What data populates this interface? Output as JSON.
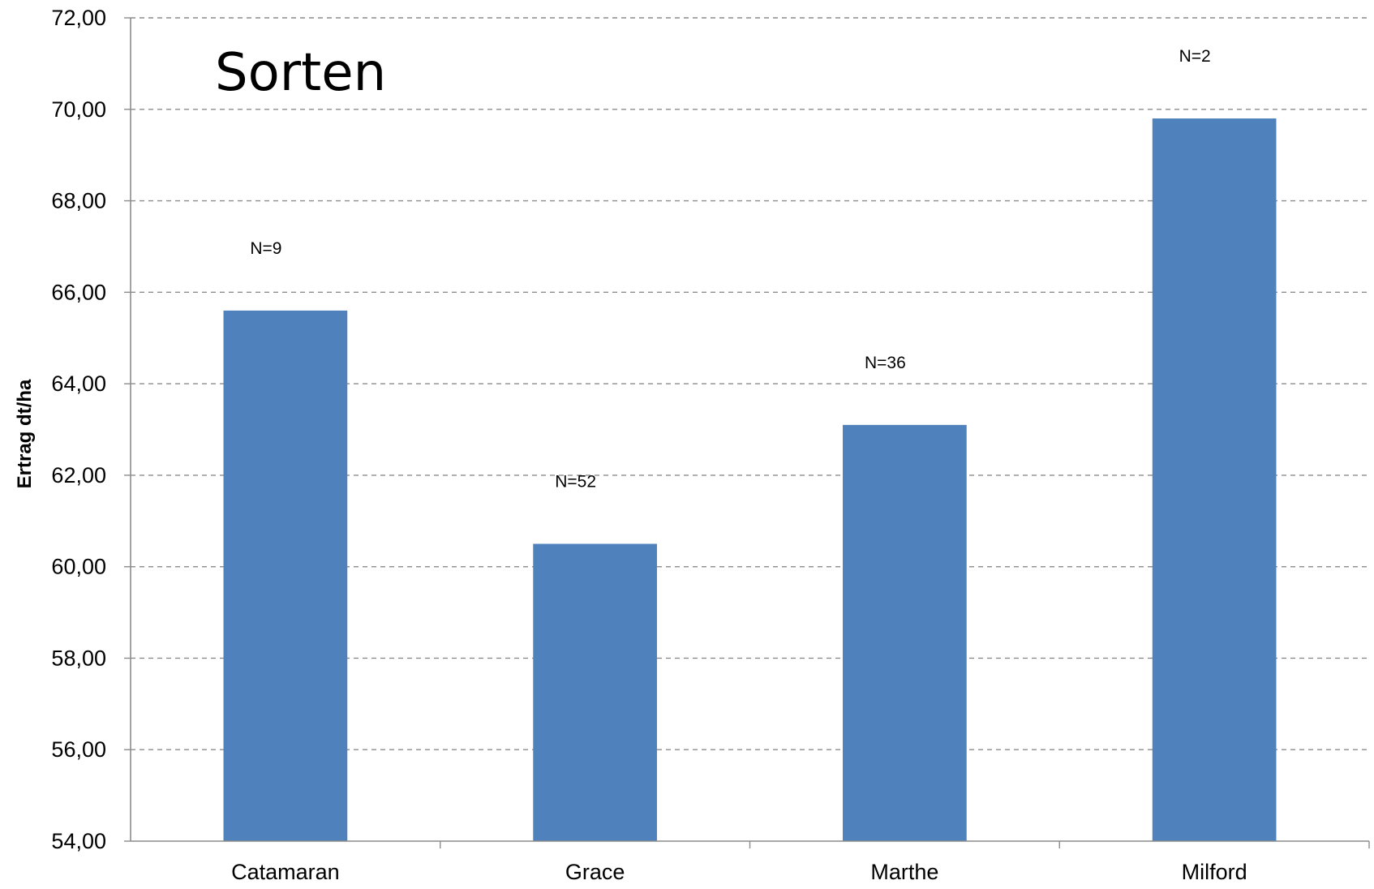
{
  "chart_data": {
    "type": "bar",
    "title": "Sorten",
    "xlabel": "",
    "ylabel": "Ertrag dt/ha",
    "ylim": [
      54,
      72
    ],
    "ytick_step": 2,
    "ytick_labels": [
      "54,00",
      "56,00",
      "58,00",
      "60,00",
      "62,00",
      "64,00",
      "66,00",
      "68,00",
      "70,00",
      "72,00"
    ],
    "categories": [
      "Catamaran",
      "Grace",
      "Marthe",
      "Milford"
    ],
    "values": [
      65.6,
      60.5,
      63.1,
      69.8
    ],
    "data_labels": [
      "N=9",
      "N=52",
      "N=36",
      "N=2"
    ],
    "grid": true,
    "colors": {
      "bar": "#4f81bd",
      "grid": "#8c8c8c",
      "axis": "#8c8c8c"
    }
  }
}
